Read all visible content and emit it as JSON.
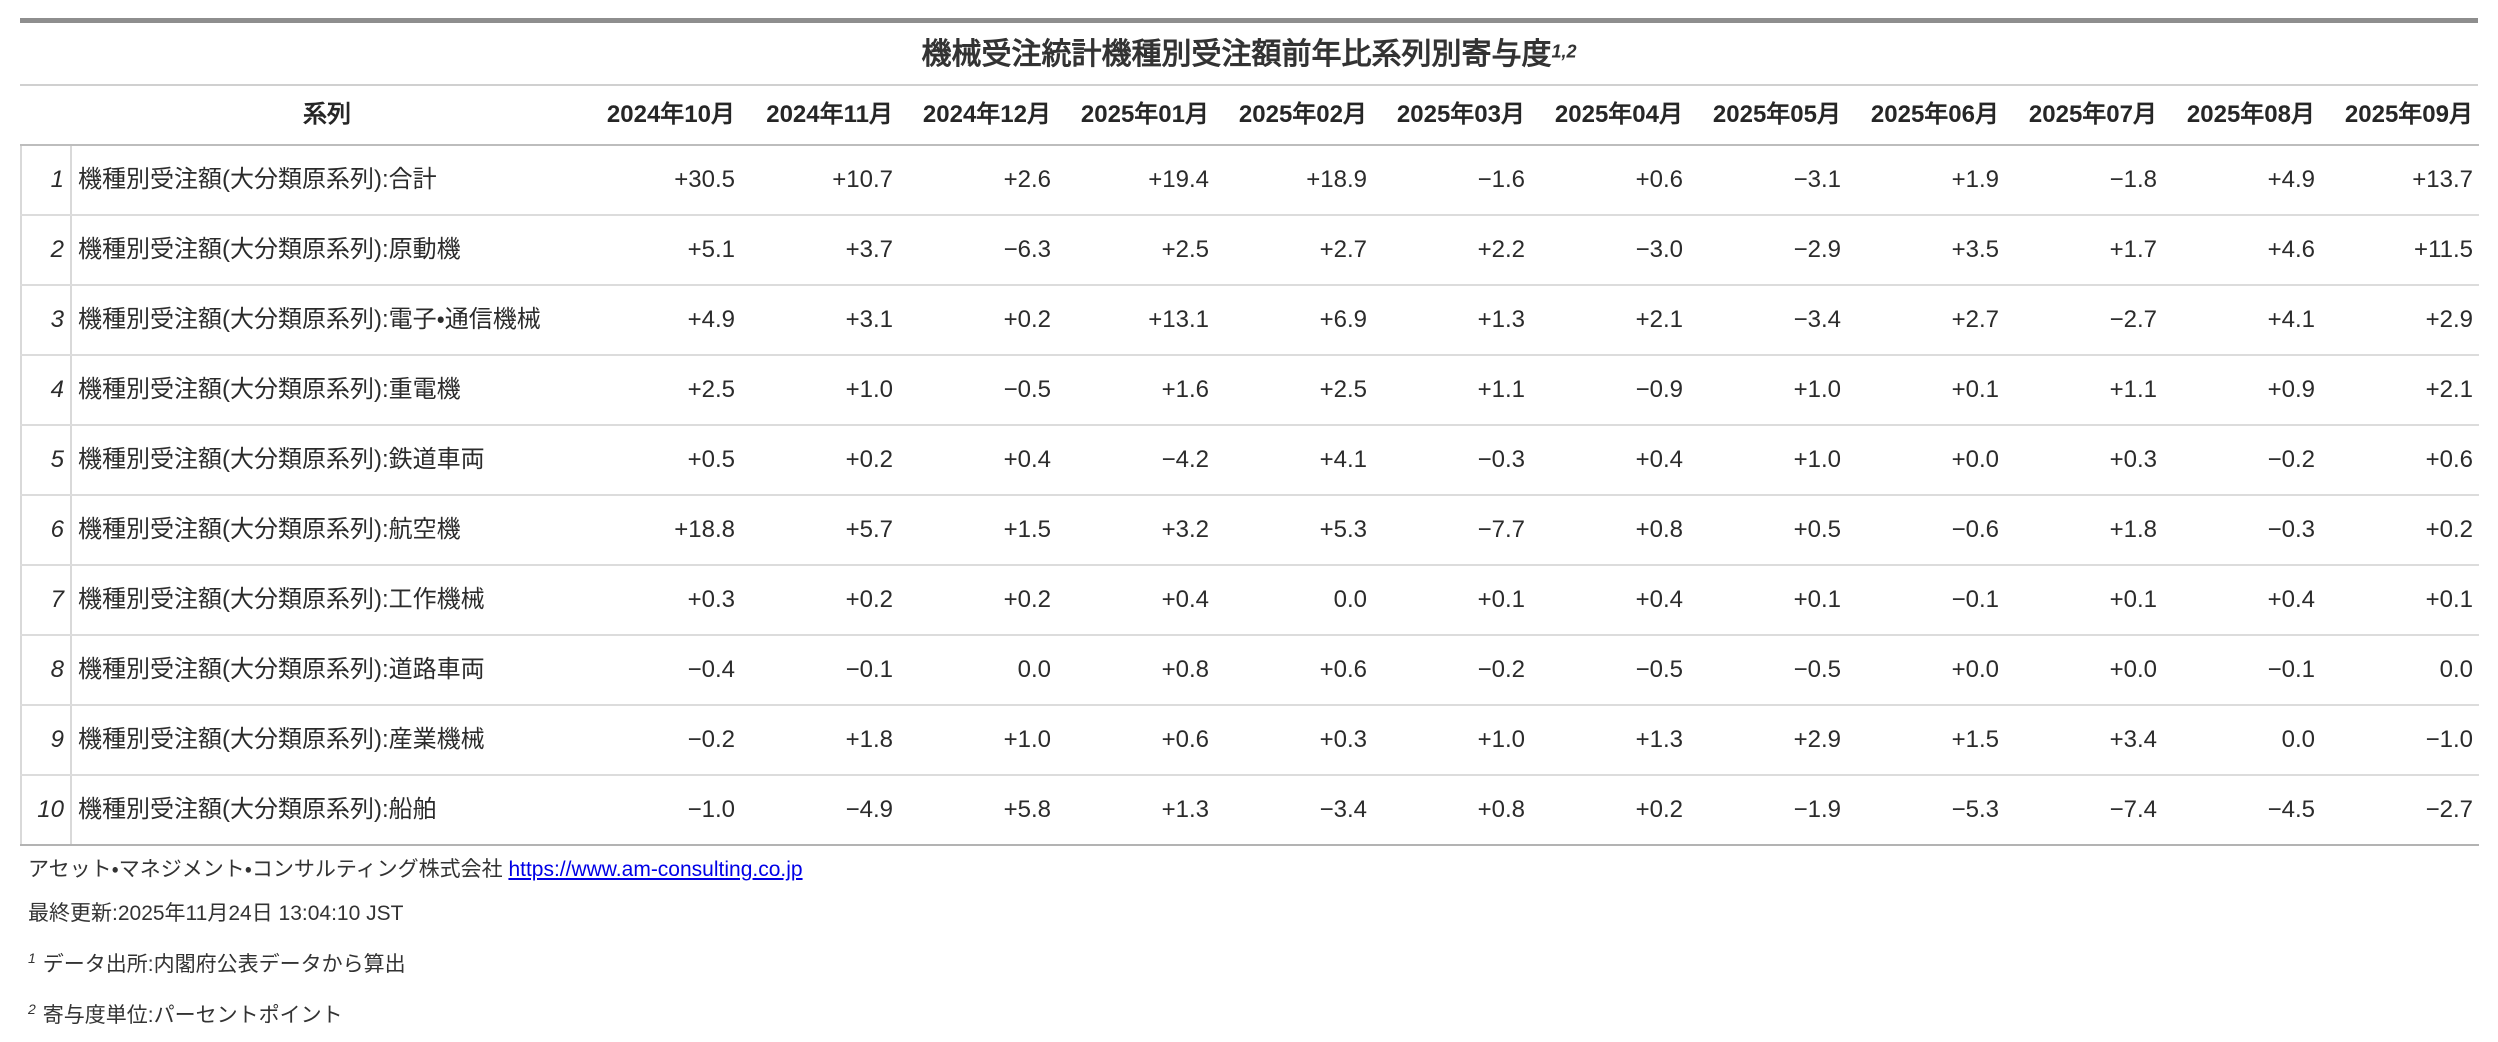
{
  "title": {
    "text": "機械受注統計機種別受注額前年比系列別寄与度",
    "superscript": "1,2"
  },
  "chart_data": {
    "type": "table",
    "title": "機械受注統計機種別受注額前年比系列別寄与度",
    "series_header": "系列",
    "months": [
      "2024年10月",
      "2024年11月",
      "2024年12月",
      "2025年01月",
      "2025年02月",
      "2025年03月",
      "2025年04月",
      "2025年05月",
      "2025年06月",
      "2025年07月",
      "2025年08月",
      "2025年09月"
    ],
    "unit": "パーセントポイント",
    "rows": [
      {
        "index": "1",
        "series": "機種別受注額(大分類原系列):合計",
        "values": [
          "+30.5",
          "+10.7",
          "+2.6",
          "+19.4",
          "+18.9",
          "−1.6",
          "+0.6",
          "−3.1",
          "+1.9",
          "−1.8",
          "+4.9",
          "+13.7"
        ]
      },
      {
        "index": "2",
        "series": "機種別受注額(大分類原系列):原動機",
        "values": [
          "+5.1",
          "+3.7",
          "−6.3",
          "+2.5",
          "+2.7",
          "+2.2",
          "−3.0",
          "−2.9",
          "+3.5",
          "+1.7",
          "+4.6",
          "+11.5"
        ]
      },
      {
        "index": "3",
        "series": "機種別受注額(大分類原系列):電子・通信機械",
        "values": [
          "+4.9",
          "+3.1",
          "+0.2",
          "+13.1",
          "+6.9",
          "+1.3",
          "+2.1",
          "−3.4",
          "+2.7",
          "−2.7",
          "+4.1",
          "+2.9"
        ]
      },
      {
        "index": "4",
        "series": "機種別受注額(大分類原系列):重電機",
        "values": [
          "+2.5",
          "+1.0",
          "−0.5",
          "+1.6",
          "+2.5",
          "+1.1",
          "−0.9",
          "+1.0",
          "+0.1",
          "+1.1",
          "+0.9",
          "+2.1"
        ]
      },
      {
        "index": "5",
        "series": "機種別受注額(大分類原系列):鉄道車両",
        "values": [
          "+0.5",
          "+0.2",
          "+0.4",
          "−4.2",
          "+4.1",
          "−0.3",
          "+0.4",
          "+1.0",
          "+0.0",
          "+0.3",
          "−0.2",
          "+0.6"
        ]
      },
      {
        "index": "6",
        "series": "機種別受注額(大分類原系列):航空機",
        "values": [
          "+18.8",
          "+5.7",
          "+1.5",
          "+3.2",
          "+5.3",
          "−7.7",
          "+0.8",
          "+0.5",
          "−0.6",
          "+1.8",
          "−0.3",
          "+0.2"
        ]
      },
      {
        "index": "7",
        "series": "機種別受注額(大分類原系列):工作機械",
        "values": [
          "+0.3",
          "+0.2",
          "+0.2",
          "+0.4",
          "0.0",
          "+0.1",
          "+0.4",
          "+0.1",
          "−0.1",
          "+0.1",
          "+0.4",
          "+0.1"
        ]
      },
      {
        "index": "8",
        "series": "機種別受注額(大分類原系列):道路車両",
        "values": [
          "−0.4",
          "−0.1",
          "0.0",
          "+0.8",
          "+0.6",
          "−0.2",
          "−0.5",
          "−0.5",
          "+0.0",
          "+0.0",
          "−0.1",
          "0.0"
        ]
      },
      {
        "index": "9",
        "series": "機種別受注額(大分類原系列):産業機械",
        "values": [
          "−0.2",
          "+1.8",
          "+1.0",
          "+0.6",
          "+0.3",
          "+1.0",
          "+1.3",
          "+2.9",
          "+1.5",
          "+3.4",
          "0.0",
          "−1.0"
        ]
      },
      {
        "index": "10",
        "series": "機種別受注額(大分類原系列):船舶",
        "values": [
          "−1.0",
          "−4.9",
          "+5.8",
          "+1.3",
          "−3.4",
          "+0.8",
          "+0.2",
          "−1.9",
          "−5.3",
          "−7.4",
          "−4.5",
          "−2.7"
        ]
      }
    ]
  },
  "footer": {
    "company": "アセット・マネジメント・コンサルティング株式会社 ",
    "link": "https://www.am-consulting.co.jp",
    "last_updated": "最終更新:2025年11月24日 13:04:10 JST",
    "footnotes": [
      {
        "marker": "1",
        "text": "データ出所:内閣府公表データから算出"
      },
      {
        "marker": "2",
        "text": "寄与度単位:パーセントポイント"
      }
    ]
  },
  "colors": {
    "top_bar": "#8e8e8e",
    "bottom_bar": "#a8a8a8",
    "separator_light": "#dcdcdc",
    "separator_dark": "#b3b3b3",
    "link": "#0000e6",
    "text": "#262626"
  }
}
